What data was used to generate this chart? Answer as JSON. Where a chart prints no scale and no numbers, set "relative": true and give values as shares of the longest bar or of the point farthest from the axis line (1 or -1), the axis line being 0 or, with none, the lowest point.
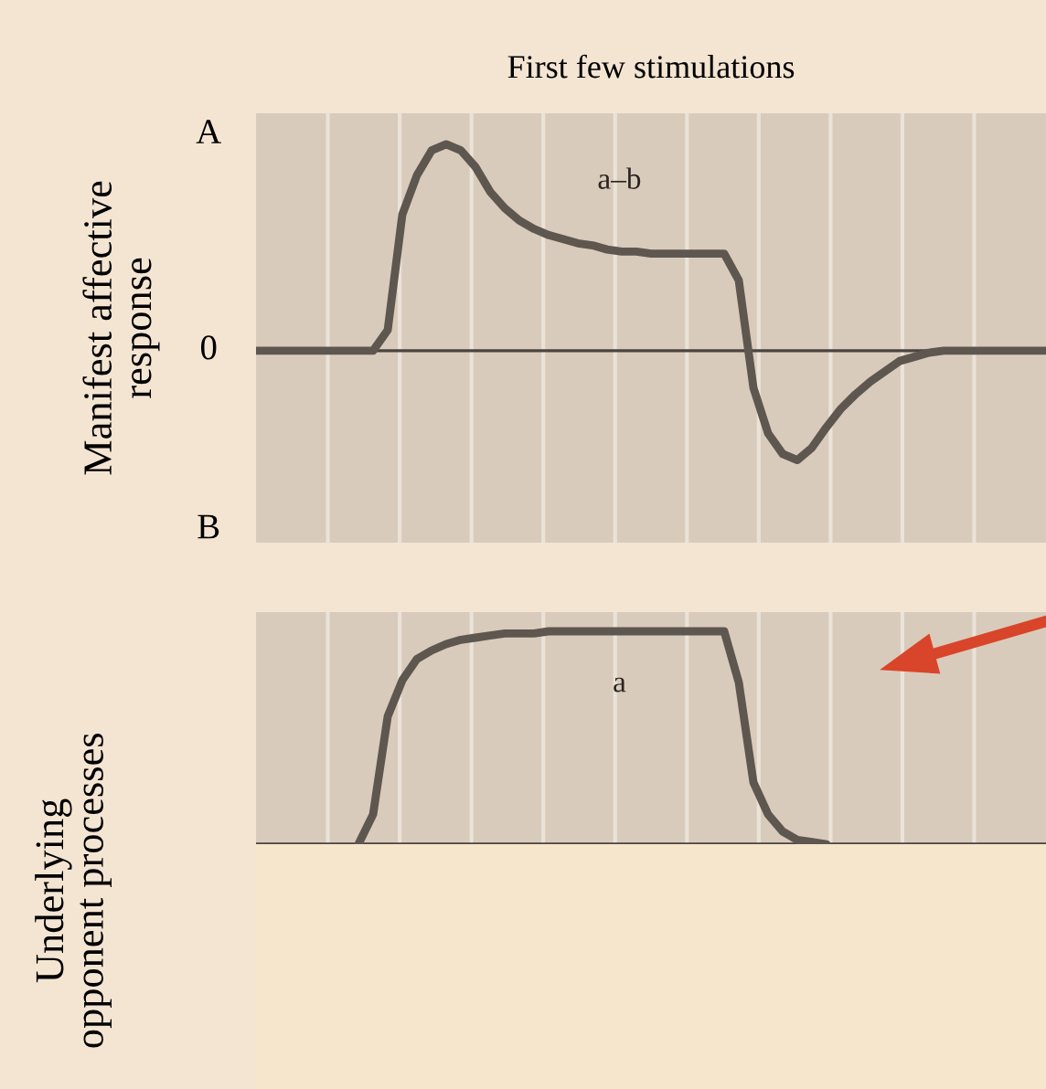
{
  "chart_data": [
    {
      "type": "line",
      "relative": true,
      "title": "First few stimulations",
      "ylabel": "Manifest affective\nresponse",
      "grid": "x",
      "annotations": [
        "A",
        "0",
        "B"
      ],
      "categories": [
        null,
        null,
        null,
        null,
        null,
        null,
        null,
        null,
        null,
        null,
        null,
        null,
        null,
        null,
        null,
        null,
        null,
        null,
        null,
        null,
        null,
        null,
        null,
        null,
        null,
        null,
        null,
        null,
        null,
        null,
        null,
        null,
        null,
        null,
        null,
        null,
        null,
        null,
        null,
        null,
        null,
        null,
        null,
        null,
        null,
        null,
        null,
        null,
        null,
        null,
        null,
        null,
        null,
        null,
        null
      ],
      "series": [
        {
          "name": "a–b",
          "color": "#5e5750",
          "values": [
            0,
            0,
            0,
            0,
            0,
            0,
            0,
            0,
            0,
            0.1,
            0.66,
            0.85,
            0.97,
            1.0,
            0.97,
            0.89,
            0.77,
            0.69,
            0.63,
            0.59,
            0.56,
            0.54,
            0.52,
            0.51,
            0.49,
            0.48,
            0.48,
            0.47,
            0.47,
            0.47,
            0.47,
            0.47,
            0.47,
            0.34,
            -0.18,
            -0.4,
            -0.5,
            -0.53,
            -0.47,
            -0.37,
            -0.28,
            -0.21,
            -0.15,
            -0.1,
            -0.05,
            -0.03,
            -0.01,
            0,
            0,
            0,
            0,
            0,
            0,
            0,
            0
          ]
        }
      ]
    },
    {
      "type": "line",
      "relative": true,
      "ylabel": "Underlying\nopponent processes",
      "grid": "x",
      "categories": [
        null,
        null,
        null,
        null,
        null,
        null,
        null,
        null,
        null,
        null,
        null,
        null,
        null,
        null,
        null,
        null,
        null,
        null,
        null,
        null,
        null,
        null,
        null,
        null,
        null,
        null,
        null,
        null,
        null,
        null,
        null,
        null,
        null,
        null,
        null,
        null,
        null,
        null,
        null,
        null,
        null,
        null,
        null,
        null,
        null,
        null,
        null,
        null,
        null,
        null,
        null,
        null,
        null,
        null,
        null
      ],
      "series": [
        {
          "name": "a",
          "color": "#5e5750",
          "values": [
            null,
            null,
            null,
            null,
            null,
            null,
            null,
            0,
            0.14,
            0.6,
            0.77,
            0.87,
            0.91,
            0.94,
            0.96,
            0.97,
            0.98,
            0.99,
            0.99,
            0.99,
            1.0,
            1.0,
            1.0,
            1.0,
            1.0,
            1.0,
            1.0,
            1.0,
            1.0,
            1.0,
            1.0,
            1.0,
            1.0,
            0.76,
            0.29,
            0.14,
            0.06,
            0.02,
            0.01,
            0,
            null,
            null,
            null,
            null,
            null,
            null,
            null,
            null,
            null,
            null,
            null,
            null,
            null,
            null,
            null
          ]
        }
      ]
    }
  ]
}
